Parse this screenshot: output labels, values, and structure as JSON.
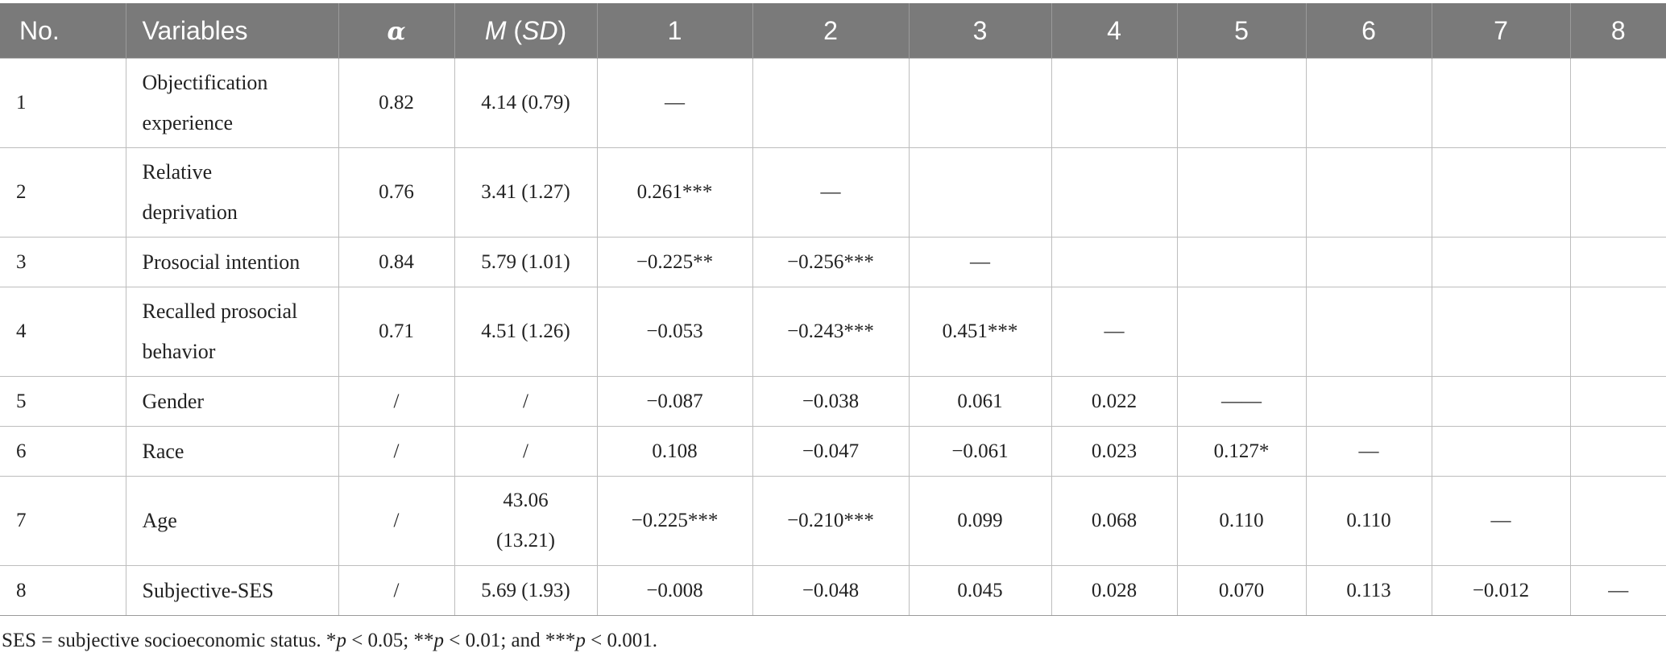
{
  "table": {
    "headers": {
      "no": "No.",
      "variables": "Variables",
      "alpha": "α",
      "msd_m": "M",
      "msd_open": " (",
      "msd_sd": "SD",
      "msd_close": ")",
      "c1": "1",
      "c2": "2",
      "c3": "3",
      "c4": "4",
      "c5": "5",
      "c6": "6",
      "c7": "7",
      "c8": "8"
    },
    "rows": [
      {
        "no": "1",
        "variable_l1": "Objectification",
        "variable_l2": "experience",
        "alpha": "0.82",
        "msd": "4.14 (0.79)",
        "c1": "—",
        "c2": "",
        "c3": "",
        "c4": "",
        "c5": "",
        "c6": "",
        "c7": "",
        "c8": ""
      },
      {
        "no": "2",
        "variable_l1": "Relative",
        "variable_l2": "deprivation",
        "alpha": "0.76",
        "msd": "3.41 (1.27)",
        "c1": "0.261***",
        "c2": "—",
        "c3": "",
        "c4": "",
        "c5": "",
        "c6": "",
        "c7": "",
        "c8": ""
      },
      {
        "no": "3",
        "variable": "Prosocial intention",
        "alpha": "0.84",
        "msd": "5.79 (1.01)",
        "c1": "−0.225**",
        "c2": "−0.256***",
        "c3": "—",
        "c4": "",
        "c5": "",
        "c6": "",
        "c7": "",
        "c8": ""
      },
      {
        "no": "4",
        "variable_l1": "Recalled prosocial",
        "variable_l2": "behavior",
        "alpha": "0.71",
        "msd": "4.51 (1.26)",
        "c1": "−0.053",
        "c2": "−0.243***",
        "c3": "0.451***",
        "c4": "—",
        "c5": "",
        "c6": "",
        "c7": "",
        "c8": ""
      },
      {
        "no": "5",
        "variable": "Gender",
        "alpha": "/",
        "msd": "/",
        "c1": "−0.087",
        "c2": "−0.038",
        "c3": "0.061",
        "c4": "0.022",
        "c5": "——",
        "c6": "",
        "c7": "",
        "c8": ""
      },
      {
        "no": "6",
        "variable": "Race",
        "alpha": "/",
        "msd": "/",
        "c1": "0.108",
        "c2": "−0.047",
        "c3": "−0.061",
        "c4": "0.023",
        "c5": "0.127*",
        "c6": "—",
        "c7": "",
        "c8": ""
      },
      {
        "no": "7",
        "variable": "Age",
        "alpha": "/",
        "msd_l1": "43.06",
        "msd_l2": "(13.21)",
        "c1": "−0.225***",
        "c2": "−0.210***",
        "c3": "0.099",
        "c4": "0.068",
        "c5": "0.110",
        "c6": "0.110",
        "c7": "—",
        "c8": ""
      },
      {
        "no": "8",
        "variable": "Subjective-SES",
        "alpha": "/",
        "msd": "5.69 (1.93)",
        "c1": "−0.008",
        "c2": "−0.048",
        "c3": "0.045",
        "c4": "0.028",
        "c5": "0.070",
        "c6": "0.113",
        "c7": "−0.012",
        "c8": "—"
      }
    ]
  },
  "note": {
    "part1": "SES = subjective socioeconomic status. *",
    "p1": "p",
    "part2": " < 0.05; **",
    "p2": "p",
    "part3": " < 0.01; and ***",
    "p3": "p",
    "part4": " < 0.001."
  }
}
